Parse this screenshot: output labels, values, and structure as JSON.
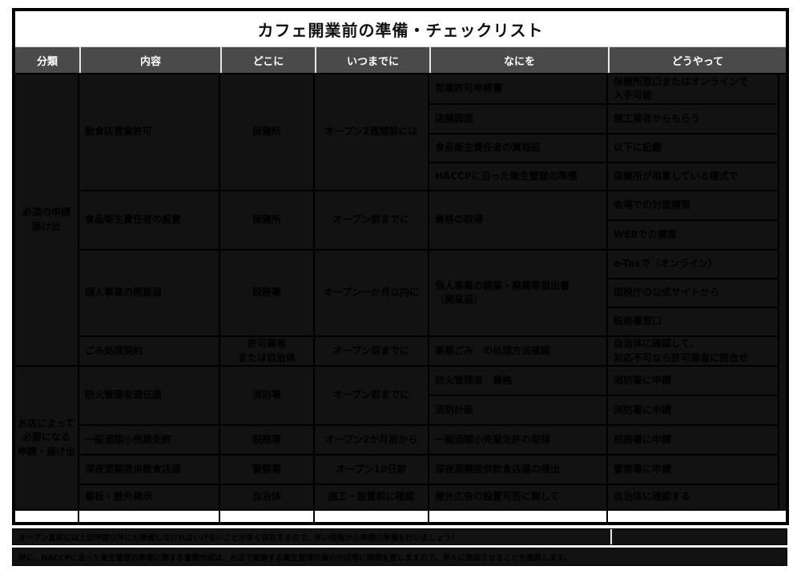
{
  "title": "カフェ開業前の準備・チェックリスト",
  "columns": [
    "分類",
    "内容",
    "どこに",
    "いつまでに",
    "なにを",
    "どうやって"
  ],
  "colors": {
    "header_bg": "#4a4a4a",
    "header_text": "#ffffff",
    "body_bg": "#121212",
    "body_text": "#000000",
    "border": "#000000",
    "title_text": "#111111"
  },
  "table": {
    "cells": [
      {
        "name": "category-required",
        "c": 1,
        "r": 1,
        "rs": 10,
        "align": "center",
        "text": "必須の申請\n届け出"
      },
      {
        "name": "category-shop-specific",
        "c": 1,
        "r": 11,
        "rs": 5,
        "align": "center",
        "text": "お店によって\n必要になる\n申請・届け出"
      },
      {
        "name": "content-restaurant-license",
        "c": 2,
        "r": 1,
        "rs": 4,
        "align": "left",
        "text": "飲食店営業許可"
      },
      {
        "name": "content-food-hygiene-manager",
        "c": 2,
        "r": 5,
        "rs": 2,
        "align": "left",
        "text": "食品衛生責任者の設置"
      },
      {
        "name": "content-business-opening",
        "c": 2,
        "r": 7,
        "rs": 3,
        "align": "left",
        "text": "個人事業の開業届"
      },
      {
        "name": "content-garbage-contract",
        "c": 2,
        "r": 10,
        "rs": 1,
        "align": "left",
        "text": "ごみ処理契約"
      },
      {
        "name": "content-fire-manager",
        "c": 2,
        "r": 11,
        "rs": 2,
        "align": "left",
        "text": "防火管理者選任届"
      },
      {
        "name": "content-liquor-license",
        "c": 2,
        "r": 13,
        "rs": 1,
        "align": "left",
        "text": "一般酒類小売業免許"
      },
      {
        "name": "content-late-night-liquor",
        "c": 2,
        "r": 14,
        "rs": 1,
        "align": "left",
        "text": "深夜酒類提供飲食店届"
      },
      {
        "name": "content-signboard",
        "c": 2,
        "r": 15,
        "rs": 1,
        "align": "left",
        "text": "看板・屋外掲示"
      },
      {
        "name": "where-health-center-1",
        "c": 3,
        "r": 1,
        "rs": 4,
        "align": "center",
        "text": "保健所"
      },
      {
        "name": "where-health-center-2",
        "c": 3,
        "r": 5,
        "rs": 2,
        "align": "center",
        "text": "保健所"
      },
      {
        "name": "where-tax-office-1",
        "c": 3,
        "r": 7,
        "rs": 3,
        "align": "center",
        "text": "税務署"
      },
      {
        "name": "where-contractor",
        "c": 3,
        "r": 10,
        "rs": 1,
        "align": "center",
        "text": "許可業者\nまたは自治体"
      },
      {
        "name": "where-fire-dept",
        "c": 3,
        "r": 11,
        "rs": 2,
        "align": "center",
        "text": "消防署"
      },
      {
        "name": "where-tax-office-2",
        "c": 3,
        "r": 13,
        "rs": 1,
        "align": "center",
        "text": "税務署"
      },
      {
        "name": "where-police",
        "c": 3,
        "r": 14,
        "rs": 1,
        "align": "center",
        "text": "警察署"
      },
      {
        "name": "where-municipality",
        "c": 3,
        "r": 15,
        "rs": 1,
        "align": "center",
        "text": "自治体"
      },
      {
        "name": "when-2weeks-before",
        "c": 4,
        "r": 1,
        "rs": 4,
        "align": "center",
        "text": "オープン2週間前には"
      },
      {
        "name": "when-before-open-1",
        "c": 4,
        "r": 5,
        "rs": 2,
        "align": "center",
        "text": "オープン前までに"
      },
      {
        "name": "when-1month-within",
        "c": 4,
        "r": 7,
        "rs": 3,
        "align": "center",
        "text": "オープン一か月以内に"
      },
      {
        "name": "when-before-open-2",
        "c": 4,
        "r": 10,
        "rs": 1,
        "align": "center",
        "text": "オープン前までに"
      },
      {
        "name": "when-before-open-3",
        "c": 4,
        "r": 11,
        "rs": 2,
        "align": "center",
        "text": "オープン前までに"
      },
      {
        "name": "when-2months-before",
        "c": 4,
        "r": 13,
        "rs": 1,
        "align": "center",
        "text": "オープン2か月前から"
      },
      {
        "name": "when-10days-before",
        "c": 4,
        "r": 14,
        "rs": 1,
        "align": "center",
        "text": "オープン10日前"
      },
      {
        "name": "when-before-install",
        "c": 4,
        "r": 15,
        "rs": 1,
        "align": "center",
        "text": "施工・設置前に確認"
      },
      {
        "name": "what-license-application",
        "c": 5,
        "r": 1,
        "rs": 1,
        "align": "left",
        "text": "営業許可申請書"
      },
      {
        "name": "what-floor-plan",
        "c": 5,
        "r": 2,
        "rs": 1,
        "align": "left",
        "text": "店舗図面"
      },
      {
        "name": "what-hygiene-certificate",
        "c": 5,
        "r": 3,
        "rs": 1,
        "align": "left",
        "text": "食品衛生責任者の資格証"
      },
      {
        "name": "what-haccp-preparation",
        "c": 5,
        "r": 4,
        "rs": 1,
        "align": "left",
        "text": "HACCPに沿った衛生管理の準備"
      },
      {
        "name": "what-qualification",
        "c": 5,
        "r": 5,
        "rs": 2,
        "align": "left",
        "text": "資格の取得"
      },
      {
        "name": "what-opening-notification",
        "c": 5,
        "r": 7,
        "rs": 3,
        "align": "left",
        "text": "個人事業の開業・廃業等届出書\n（開業届）"
      },
      {
        "name": "what-garbage-method",
        "c": 5,
        "r": 10,
        "rs": 1,
        "align": "left",
        "text": "事業ごみ　の処理方法確認"
      },
      {
        "name": "what-fire-qualification",
        "c": 5,
        "r": 11,
        "rs": 1,
        "align": "left",
        "text": "防火管理者　資格"
      },
      {
        "name": "what-fire-plan",
        "c": 5,
        "r": 12,
        "rs": 1,
        "align": "left",
        "text": "消防計画"
      },
      {
        "name": "what-liquor-license",
        "c": 5,
        "r": 13,
        "rs": 1,
        "align": "left",
        "text": "一般酒類小売業免許の取得"
      },
      {
        "name": "what-late-night-notification",
        "c": 5,
        "r": 14,
        "rs": 1,
        "align": "left",
        "text": "深夜酒類提供飲食店届の提出"
      },
      {
        "name": "what-outdoor-ad",
        "c": 5,
        "r": 15,
        "rs": 1,
        "align": "left",
        "text": "屋外広告の設置可否に関して"
      },
      {
        "name": "how-health-center-online",
        "c": 6,
        "r": 1,
        "rs": 1,
        "align": "left",
        "text": "保健所窓口またはオンラインで\n入手可能"
      },
      {
        "name": "how-from-contractor",
        "c": 6,
        "r": 2,
        "rs": 1,
        "align": "left",
        "text": "施工業者からもらう"
      },
      {
        "name": "how-described-below",
        "c": 6,
        "r": 3,
        "rs": 1,
        "align": "left",
        "text": "以下に記載"
      },
      {
        "name": "how-health-center-format",
        "c": 6,
        "r": 4,
        "rs": 1,
        "align": "left",
        "text": "保健所が用意している様式で"
      },
      {
        "name": "how-in-person-course",
        "c": 6,
        "r": 5,
        "rs": 1,
        "align": "left",
        "text": "会場での対面講習"
      },
      {
        "name": "how-web-course",
        "c": 6,
        "r": 6,
        "rs": 1,
        "align": "left",
        "text": "WEBでの講習"
      },
      {
        "name": "how-etax",
        "c": 6,
        "r": 7,
        "rs": 1,
        "align": "left",
        "text": "e-Taxで（オンライン）"
      },
      {
        "name": "how-nta-site",
        "c": 6,
        "r": 8,
        "rs": 1,
        "align": "left",
        "text": "国税庁の公式サイトから"
      },
      {
        "name": "how-tax-office-counter",
        "c": 6,
        "r": 9,
        "rs": 1,
        "align": "left",
        "text": "税務署窓口"
      },
      {
        "name": "how-ask-municipality",
        "c": 6,
        "r": 10,
        "rs": 1,
        "align": "left",
        "text": "自治体に確認して、\n対応不可なら許可業者に問合せ"
      },
      {
        "name": "how-apply-fire-dept-1",
        "c": 6,
        "r": 11,
        "rs": 1,
        "align": "left",
        "text": "消防署に申請"
      },
      {
        "name": "how-apply-fire-dept-2",
        "c": 6,
        "r": 12,
        "rs": 1,
        "align": "left",
        "text": "消防署に申請"
      },
      {
        "name": "how-apply-tax-office",
        "c": 6,
        "r": 13,
        "rs": 1,
        "align": "left",
        "text": "税務署に申請"
      },
      {
        "name": "how-apply-police",
        "c": 6,
        "r": 14,
        "rs": 1,
        "align": "left",
        "text": "警察署に申請"
      },
      {
        "name": "how-confirm-municipality",
        "c": 6,
        "r": 15,
        "rs": 1,
        "align": "left",
        "text": "自治体に確認する"
      }
    ]
  },
  "notes": [
    "オープン直前には上記申請以外にも準備しなければいけないことが多く存在するので、早い段階から申請の準備を行いましょう！",
    "特に、HACCPに沿った衛生管理の準備に関する書類作成は、お店で実施する衛生管理計画の作成等に時間を要しますので、早々に完成させることを推奨します。"
  ]
}
